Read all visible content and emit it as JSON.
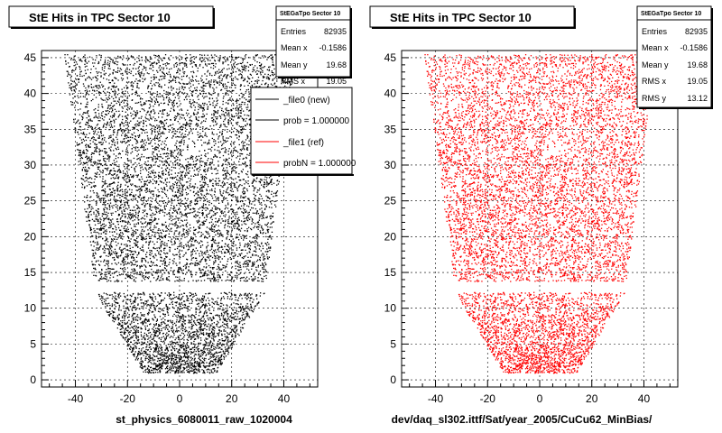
{
  "footer_text": "",
  "chart_data": [
    {
      "type": "scatter",
      "title": "StE Hits in TPC Sector 10",
      "xlabel": "st_physics_6080011_raw_1020004",
      "ylabel": "",
      "xlim": [
        -53,
        53
      ],
      "ylim": [
        -1,
        46
      ],
      "x_ticks": [
        -40,
        -20,
        0,
        20,
        40
      ],
      "y_ticks": [
        0,
        5,
        10,
        15,
        20,
        25,
        30,
        35,
        40,
        45
      ],
      "grid": true,
      "marker_color": "#000000",
      "point_count_estimate": 82935,
      "stats": {
        "name": "StEGaTpo Sector 10",
        "rows": [
          {
            "label": "Entries",
            "value": "82935"
          },
          {
            "label": "Mean x",
            "value": "-0.1586"
          },
          {
            "label": "Mean y",
            "value": "19.68"
          },
          {
            "label": "RMS x",
            "value": "19.05"
          }
        ]
      },
      "legend": {
        "placement": "top-right",
        "entries": [
          {
            "label": "_file0 (new)",
            "color": "#000000"
          },
          {
            "label": "prob = 1.000000",
            "color": "#000000"
          },
          {
            "label": "_file1 (ref)",
            "color": "#ff0000"
          },
          {
            "label": "probN = 1.000000",
            "color": "#ff0000"
          }
        ]
      }
    },
    {
      "type": "scatter",
      "title": "StE Hits in TPC Sector 10",
      "xlabel": "dev/daq_sl302.ittf/Sat/year_2005/CuCu62_MinBias/",
      "ylabel": "",
      "xlim": [
        -53,
        53
      ],
      "ylim": [
        -1,
        46
      ],
      "x_ticks": [
        -40,
        -20,
        0,
        20,
        40
      ],
      "y_ticks": [
        0,
        5,
        10,
        15,
        20,
        25,
        30,
        35,
        40,
        45
      ],
      "grid": true,
      "marker_color": "#ff0000",
      "point_count_estimate": 82935,
      "stats": {
        "name": "StEGaTpo Sector 10",
        "rows": [
          {
            "label": "Entries",
            "value": "82935"
          },
          {
            "label": "Mean x",
            "value": "-0.1586"
          },
          {
            "label": "Mean y",
            "value": "19.68"
          },
          {
            "label": "RMS x",
            "value": "19.05"
          },
          {
            "label": "RMS y",
            "value": "13.12"
          }
        ]
      }
    }
  ]
}
